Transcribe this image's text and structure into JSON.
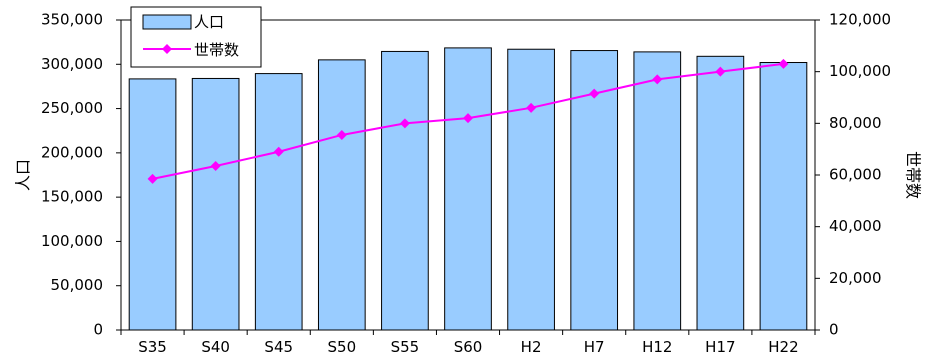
{
  "chart_data": {
    "type": "bar+line",
    "categories": [
      "S35",
      "S40",
      "S45",
      "S50",
      "S55",
      "S60",
      "H2",
      "H7",
      "H12",
      "H17",
      "H22"
    ],
    "series": [
      {
        "name": "人口",
        "type": "bar",
        "axis": "left",
        "color": "#99CCFF",
        "values": [
          283500,
          284000,
          289500,
          305000,
          314500,
          318500,
          317000,
          315500,
          314000,
          309000,
          302000
        ]
      },
      {
        "name": "世帯数",
        "type": "line",
        "axis": "right",
        "color": "#FF00FF",
        "values": [
          58500,
          63500,
          69000,
          75500,
          80000,
          82000,
          86000,
          91500,
          97000,
          100000,
          103000
        ]
      }
    ],
    "ylabel_left": "人口",
    "ylabel_right": "世帯数",
    "ylim_left": [
      0,
      350000
    ],
    "ylim_right": [
      0,
      120000
    ],
    "yticks_left": [
      "0",
      "50,000",
      "100,000",
      "150,000",
      "200,000",
      "250,000",
      "300,000",
      "350,000"
    ],
    "yticks_right": [
      "0",
      "20,000",
      "40,000",
      "60,000",
      "80,000",
      "100,000",
      "120,000"
    ],
    "grid": false,
    "legend_position": "top-left"
  }
}
